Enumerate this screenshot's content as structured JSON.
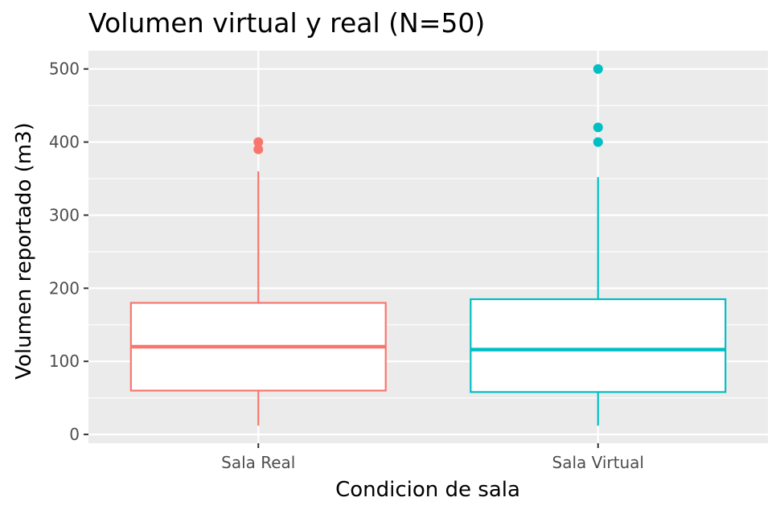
{
  "chart_data": {
    "type": "boxplot",
    "title": "Volumen virtual y real (N=50)",
    "xlabel": "Condicion de sala",
    "ylabel": "Volumen reportado (m3)",
    "ylim": [
      -12,
      525
    ],
    "yticks": [
      "0",
      "100",
      "200",
      "300",
      "400",
      "500"
    ],
    "ytick_values": [
      0,
      100,
      200,
      300,
      400,
      500
    ],
    "grid": true,
    "legend": "none",
    "categories": [
      "Sala Real",
      "Sala Virtual"
    ],
    "series": [
      {
        "category": "Sala Real",
        "color": "#F8766D",
        "min": 12,
        "q1": 60,
        "median": 120,
        "q3": 180,
        "max": 360,
        "outliers": [
          390,
          400
        ]
      },
      {
        "category": "Sala Virtual",
        "color": "#00BFC4",
        "min": 12,
        "q1": 58,
        "median": 116,
        "q3": 185,
        "max": 352,
        "outliers": [
          400,
          420,
          500
        ]
      }
    ],
    "colors": {
      "panel_background": "#EBEBEB",
      "grid": "#FFFFFF",
      "box_fill": "#FFFFFF",
      "tick_text": "#4D4D4D"
    }
  }
}
